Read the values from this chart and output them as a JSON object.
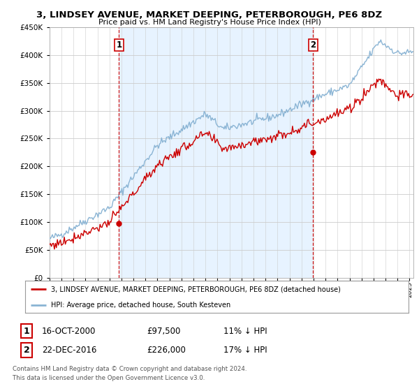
{
  "title": "3, LINDSEY AVENUE, MARKET DEEPING, PETERBOROUGH, PE6 8DZ",
  "subtitle": "Price paid vs. HM Land Registry's House Price Index (HPI)",
  "legend_line1": "3, LINDSEY AVENUE, MARKET DEEPING, PETERBOROUGH, PE6 8DZ (detached house)",
  "legend_line2": "HPI: Average price, detached house, South Kesteven",
  "annotation1_date": "16-OCT-2000",
  "annotation1_price": "£97,500",
  "annotation1_hpi": "11% ↓ HPI",
  "annotation2_date": "22-DEC-2016",
  "annotation2_price": "£226,000",
  "annotation2_hpi": "17% ↓ HPI",
  "footer": "Contains HM Land Registry data © Crown copyright and database right 2024.\nThis data is licensed under the Open Government Licence v3.0.",
  "xmin": 1995,
  "xmax": 2025,
  "ymin": 0,
  "ymax": 450000,
  "yticks": [
    0,
    50000,
    100000,
    150000,
    200000,
    250000,
    300000,
    350000,
    400000,
    450000
  ],
  "transaction1_x": 2000.79,
  "transaction1_y": 97500,
  "transaction2_x": 2016.97,
  "transaction2_y": 226000,
  "hpi_color": "#8ab4d4",
  "price_color": "#cc0000",
  "vline_color": "#cc0000",
  "shade_color": "#ddeeff",
  "background_color": "#ffffff",
  "grid_color": "#cccccc"
}
